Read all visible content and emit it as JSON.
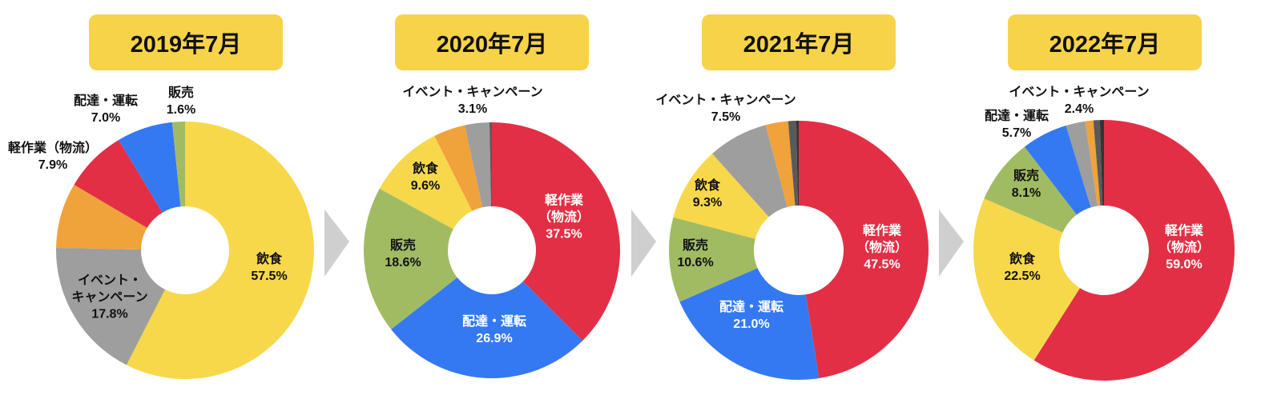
{
  "colors": {
    "yellow": "#f7d84a",
    "gray": "#9e9e9e",
    "orange": "#f0a23b",
    "red": "#e32f45",
    "blue": "#3479f1",
    "green": "#a1bb63",
    "darkgray": "#5a5a5a",
    "darker": "#333333",
    "pill": "#f7d34a",
    "arrow": "#cfcfcf"
  },
  "chart_data": [
    {
      "type": "pie",
      "title": "2019年7月",
      "slices": [
        {
          "name": "飲食",
          "value": 57.5,
          "label": "飲食",
          "pct": "57.5%",
          "color": "yellow",
          "labelColor": "dark"
        },
        {
          "name": "イベント・キャンペーン",
          "value": 17.8,
          "label": "イベント・\nキャンペーン",
          "pct": "17.8%",
          "color": "gray",
          "labelColor": "dark"
        },
        {
          "name": "other",
          "value": 8.2,
          "label": "",
          "pct": "",
          "color": "orange"
        },
        {
          "name": "軽作業（物流）",
          "value": 7.9,
          "label": "軽作業（物流）",
          "pct": "7.9%",
          "color": "red",
          "labelColor": "dark",
          "outside": true
        },
        {
          "name": "配達・運転",
          "value": 7.0,
          "label": "配達・運転",
          "pct": "7.0%",
          "color": "blue",
          "labelColor": "dark",
          "outside": true
        },
        {
          "name": "販売",
          "value": 1.6,
          "label": "販売",
          "pct": "1.6%",
          "color": "green",
          "labelColor": "dark",
          "outside": true
        }
      ]
    },
    {
      "type": "pie",
      "title": "2020年7月",
      "slices": [
        {
          "name": "軽作業（物流）",
          "value": 37.5,
          "label": "軽作業\n（物流）",
          "pct": "37.5%",
          "color": "red",
          "labelColor": "white"
        },
        {
          "name": "配達・運転",
          "value": 26.9,
          "label": "配達・運転",
          "pct": "26.9%",
          "color": "blue",
          "labelColor": "white"
        },
        {
          "name": "販売",
          "value": 18.6,
          "label": "販売",
          "pct": "18.6%",
          "color": "green",
          "labelColor": "dark"
        },
        {
          "name": "飲食",
          "value": 9.6,
          "label": "飲食",
          "pct": "9.6%",
          "color": "yellow",
          "labelColor": "dark"
        },
        {
          "name": "other",
          "value": 4.0,
          "label": "",
          "pct": "",
          "color": "orange"
        },
        {
          "name": "イベント・キャンペーン",
          "value": 3.1,
          "label": "イベント・キャンペーン",
          "pct": "3.1%",
          "color": "gray",
          "labelColor": "dark",
          "outside": true
        },
        {
          "name": "other2",
          "value": 0.3,
          "label": "",
          "pct": "",
          "color": "darkgray"
        }
      ]
    },
    {
      "type": "pie",
      "title": "2021年7月",
      "slices": [
        {
          "name": "軽作業（物流）",
          "value": 47.5,
          "label": "軽作業\n（物流）",
          "pct": "47.5%",
          "color": "red",
          "labelColor": "white"
        },
        {
          "name": "配達・運転",
          "value": 21.0,
          "label": "配達・運転",
          "pct": "21.0%",
          "color": "blue",
          "labelColor": "white"
        },
        {
          "name": "販売",
          "value": 10.6,
          "label": "販売",
          "pct": "10.6%",
          "color": "green",
          "labelColor": "dark"
        },
        {
          "name": "飲食",
          "value": 9.3,
          "label": "飲食",
          "pct": "9.3%",
          "color": "yellow",
          "labelColor": "dark"
        },
        {
          "name": "イベント・キャンペーン",
          "value": 7.5,
          "label": "イベント・キャンペーン",
          "pct": "7.5%",
          "color": "gray",
          "labelColor": "dark",
          "outside": true
        },
        {
          "name": "other",
          "value": 2.8,
          "label": "",
          "pct": "",
          "color": "orange"
        },
        {
          "name": "other2",
          "value": 1.0,
          "label": "",
          "pct": "",
          "color": "darkgray"
        },
        {
          "name": "other3",
          "value": 0.3,
          "label": "",
          "pct": "",
          "color": "darker"
        }
      ]
    },
    {
      "type": "pie",
      "title": "2022年7月",
      "slices": [
        {
          "name": "軽作業（物流）",
          "value": 59.0,
          "label": "軽作業\n（物流）",
          "pct": "59.0%",
          "color": "red",
          "labelColor": "white"
        },
        {
          "name": "飲食",
          "value": 22.5,
          "label": "飲食",
          "pct": "22.5%",
          "color": "yellow",
          "labelColor": "dark"
        },
        {
          "name": "販売",
          "value": 8.1,
          "label": "販売",
          "pct": "8.1%",
          "color": "green",
          "labelColor": "dark"
        },
        {
          "name": "配達・運転",
          "value": 5.7,
          "label": "配達・運転",
          "pct": "5.7%",
          "color": "blue",
          "labelColor": "dark",
          "outside": true
        },
        {
          "name": "イベント・キャンペーン",
          "value": 2.4,
          "label": "イベント・キャンペーン",
          "pct": "2.4%",
          "color": "gray",
          "labelColor": "dark",
          "outside": true
        },
        {
          "name": "other",
          "value": 1.0,
          "label": "",
          "pct": "",
          "color": "orange"
        },
        {
          "name": "other2",
          "value": 0.8,
          "label": "",
          "pct": "",
          "color": "darkgray"
        },
        {
          "name": "other3",
          "value": 0.5,
          "label": "",
          "pct": "",
          "color": "darker"
        }
      ]
    }
  ]
}
